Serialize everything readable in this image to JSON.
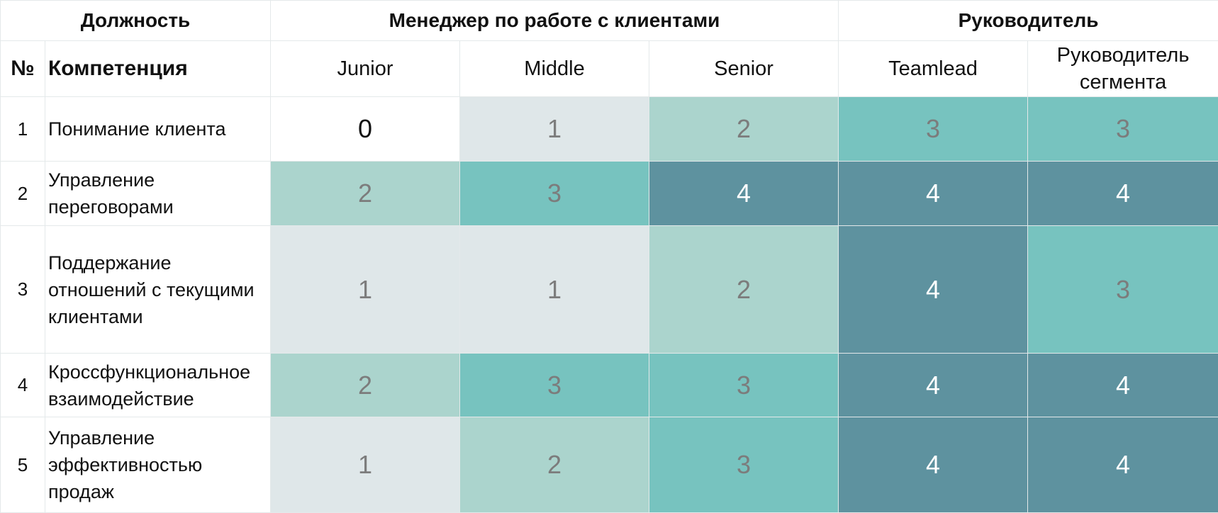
{
  "header": {
    "position_label": "Должность",
    "group_manager": "Менеджер по работе с клиентами",
    "group_lead": "Руководитель",
    "no_label": "№",
    "competence_label": "Компетенция",
    "levels": [
      "Junior",
      "Middle",
      "Senior",
      "Teamlead",
      "Руководитель сегмента"
    ]
  },
  "colors": {
    "0": "#ffffff",
    "1": "#dfe7e9",
    "2": "#abd4cd",
    "3": "#77c3bf",
    "4": "#5e929f"
  },
  "rows": [
    {
      "no": "1",
      "name": "Понимание клиента",
      "scores": [
        "0",
        "1",
        "2",
        "3",
        "3"
      ]
    },
    {
      "no": "2",
      "name": "Управление переговорами",
      "scores": [
        "2",
        "3",
        "4",
        "4",
        "4"
      ]
    },
    {
      "no": "3",
      "name": "Поддержание отношений с текущими клиентами",
      "scores": [
        "1",
        "1",
        "2",
        "4",
        "3"
      ]
    },
    {
      "no": "4",
      "name": "Кроссфункциональное взаимодействие",
      "scores": [
        "2",
        "3",
        "3",
        "4",
        "4"
      ]
    },
    {
      "no": "5",
      "name": "Управление эффективностью продаж",
      "scores": [
        "1",
        "2",
        "3",
        "4",
        "4"
      ]
    }
  ]
}
